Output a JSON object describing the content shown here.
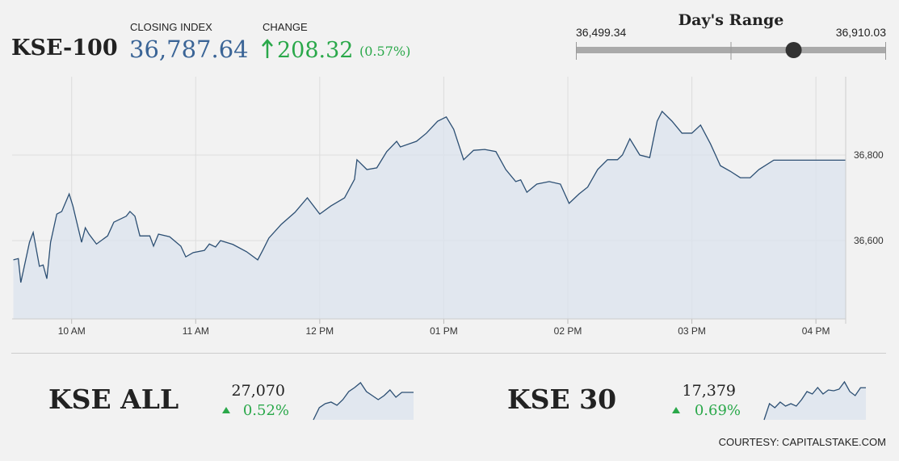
{
  "header": {
    "symbol": "KSE-100",
    "closing_label": "CLOSING INDEX",
    "closing_index": {
      "value": 36787.64,
      "label": "36,787.64"
    },
    "change_label": "CHANGE",
    "change": "208.32",
    "change_pct": "(0.57%)"
  },
  "day_range": {
    "title": "Day's Range",
    "low": {
      "value": 36499.34,
      "label": "36,499.34"
    },
    "high": {
      "value": 36910.03,
      "label": "36,910.03"
    }
  },
  "chart_data": [
    {
      "type": "line",
      "color": "#2c4f73",
      "fill": "#dce4ed",
      "grid": true,
      "x": [
        9.53,
        9.57,
        9.59,
        9.66,
        9.69,
        9.74,
        9.77,
        9.8,
        9.83,
        9.88,
        9.92,
        9.98,
        10.01,
        10.08,
        10.11,
        10.14,
        10.2,
        10.29,
        10.34,
        10.44,
        10.47,
        10.51,
        10.55,
        10.63,
        10.66,
        10.7,
        10.79,
        10.88,
        10.92,
        10.98,
        11.07,
        11.11,
        11.16,
        11.2,
        11.3,
        11.41,
        11.5,
        11.54,
        11.59,
        11.69,
        11.8,
        11.9,
        12.0,
        12.09,
        12.2,
        12.28,
        12.3,
        12.38,
        12.46,
        12.54,
        12.62,
        12.65,
        12.78,
        12.86,
        12.95,
        13.02,
        13.08,
        13.16,
        13.24,
        13.33,
        13.42,
        13.5,
        13.58,
        13.62,
        13.67,
        13.75,
        13.85,
        13.94,
        14.01,
        14.09,
        14.16,
        14.24,
        14.32,
        14.4,
        14.44,
        14.5,
        14.58,
        14.66,
        14.72,
        14.76,
        14.84,
        14.92,
        15.0,
        15.07,
        15.15,
        15.23,
        15.31,
        15.39,
        15.47,
        15.54,
        15.66,
        16.24
      ],
      "values": [
        36555,
        36558,
        36502,
        36596,
        36619,
        36540,
        36543,
        36511,
        36596,
        36662,
        36668,
        36709,
        36681,
        36596,
        36630,
        36615,
        36592,
        36611,
        36643,
        36657,
        36668,
        36657,
        36611,
        36611,
        36587,
        36615,
        36609,
        36587,
        36562,
        36572,
        36577,
        36592,
        36585,
        36600,
        36591,
        36574,
        36555,
        36577,
        36606,
        36638,
        36666,
        36700,
        36662,
        36681,
        36700,
        36743,
        36789,
        36766,
        36770,
        36808,
        36832,
        36819,
        36832,
        36851,
        36879,
        36889,
        36860,
        36789,
        36811,
        36813,
        36808,
        36766,
        36738,
        36742,
        36713,
        36732,
        36738,
        36732,
        36687,
        36709,
        36725,
        36766,
        36789,
        36789,
        36800,
        36838,
        36800,
        36794,
        36879,
        36902,
        36879,
        36851,
        36851,
        36870,
        36826,
        36775,
        36762,
        36747,
        36747,
        36766,
        36788,
        36788
      ],
      "xlim": [
        9.52,
        16.24
      ],
      "ylim": [
        36417,
        36983
      ],
      "xticks": [
        {
          "value": 10,
          "label": "10 AM"
        },
        {
          "value": 11,
          "label": "11 AM"
        },
        {
          "value": 12,
          "label": "12 PM"
        },
        {
          "value": 13,
          "label": "01 PM"
        },
        {
          "value": 14,
          "label": "02 PM"
        },
        {
          "value": 15,
          "label": "03 PM"
        },
        {
          "value": 16,
          "label": "04 PM"
        }
      ],
      "yticks": [
        {
          "value": 36600,
          "label": "36,600"
        },
        {
          "value": 36800,
          "label": "36,800"
        }
      ]
    },
    {
      "type": "line",
      "color": "#2c4f73",
      "fill": "#dce4ed",
      "values": [
        26900,
        26975,
        27000,
        27010,
        26990,
        27025,
        27075,
        27100,
        27130,
        27075,
        27050,
        27025,
        27050,
        27085,
        27040,
        27070,
        27070,
        27070
      ],
      "ylim": [
        26900,
        27150
      ]
    },
    {
      "type": "line",
      "color": "#2c4f73",
      "fill": "#dce4ed",
      "values": [
        17220,
        17300,
        17280,
        17308,
        17288,
        17300,
        17288,
        17320,
        17360,
        17348,
        17380,
        17348,
        17368,
        17364,
        17372,
        17408,
        17360,
        17340,
        17379,
        17379
      ],
      "ylim": [
        17220,
        17420
      ]
    }
  ],
  "indices": [
    {
      "name": "KSE ALL",
      "value": "27,070",
      "change": "0.52%"
    },
    {
      "name": "KSE 30",
      "value": "17,379",
      "change": "0.69%"
    }
  ],
  "courtesy": "COURTESY: CAPITALSTAKE.COM"
}
